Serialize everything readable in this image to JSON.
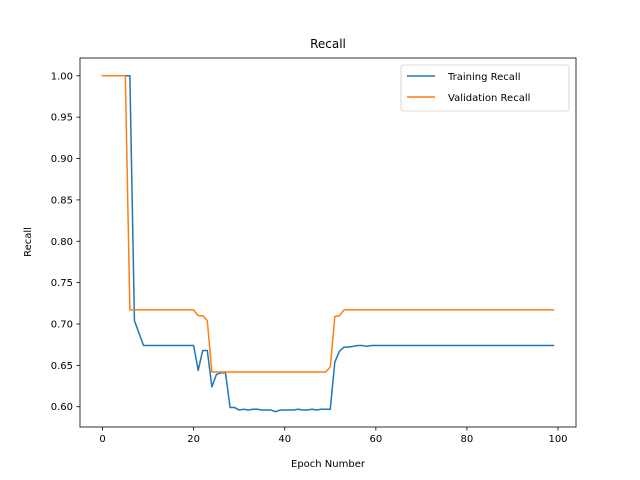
{
  "chart_data": {
    "type": "line",
    "title": "Recall",
    "xlabel": "Epoch Number",
    "ylabel": "Recall",
    "xlim": [
      -4.95,
      103.95
    ],
    "ylim": [
      0.5755,
      1.0215
    ],
    "xticks": [
      0,
      20,
      40,
      60,
      80,
      100
    ],
    "yticks": [
      0.6,
      0.65,
      0.7,
      0.75,
      0.8,
      0.85,
      0.9,
      0.95,
      1.0
    ],
    "grid": false,
    "legend_position": "top-right",
    "series": [
      {
        "name": "Training Recall",
        "color": "#1f77b4",
        "x": [
          0,
          1,
          2,
          3,
          4,
          5,
          6,
          7,
          8,
          9,
          10,
          11,
          12,
          13,
          14,
          15,
          16,
          17,
          18,
          19,
          20,
          21,
          22,
          23,
          24,
          25,
          26,
          27,
          28,
          29,
          30,
          31,
          32,
          33,
          34,
          35,
          36,
          37,
          38,
          39,
          40,
          41,
          42,
          43,
          44,
          45,
          46,
          47,
          48,
          49,
          50,
          51,
          52,
          53,
          54,
          55,
          56,
          57,
          58,
          59,
          60,
          61,
          62,
          63,
          64,
          65,
          66,
          67,
          68,
          69,
          70,
          71,
          72,
          73,
          74,
          75,
          76,
          77,
          78,
          79,
          80,
          81,
          82,
          83,
          84,
          85,
          86,
          87,
          88,
          89,
          90,
          91,
          92,
          93,
          94,
          95,
          96,
          97,
          98,
          99
        ],
        "y": [
          1.0,
          1.0,
          1.0,
          1.0,
          1.0,
          1.0,
          1.0,
          0.704,
          0.689,
          0.674,
          0.674,
          0.674,
          0.674,
          0.674,
          0.674,
          0.674,
          0.674,
          0.674,
          0.674,
          0.674,
          0.674,
          0.644,
          0.668,
          0.668,
          0.624,
          0.639,
          0.641,
          0.641,
          0.599,
          0.599,
          0.596,
          0.597,
          0.596,
          0.597,
          0.597,
          0.596,
          0.596,
          0.596,
          0.594,
          0.596,
          0.596,
          0.596,
          0.596,
          0.597,
          0.596,
          0.596,
          0.597,
          0.596,
          0.597,
          0.597,
          0.597,
          0.654,
          0.667,
          0.672,
          0.672,
          0.673,
          0.674,
          0.674,
          0.673,
          0.674,
          0.674,
          0.674,
          0.674,
          0.674,
          0.674,
          0.674,
          0.674,
          0.674,
          0.674,
          0.674,
          0.674,
          0.674,
          0.674,
          0.674,
          0.674,
          0.674,
          0.674,
          0.674,
          0.674,
          0.674,
          0.674,
          0.674,
          0.674,
          0.674,
          0.674,
          0.674,
          0.674,
          0.674,
          0.674,
          0.674,
          0.674,
          0.674,
          0.674,
          0.674,
          0.674,
          0.674,
          0.674,
          0.674,
          0.674,
          0.674
        ]
      },
      {
        "name": "Validation Recall",
        "color": "#ff7f0e",
        "x": [
          0,
          1,
          2,
          3,
          4,
          5,
          6,
          7,
          8,
          9,
          10,
          11,
          12,
          13,
          14,
          15,
          16,
          17,
          18,
          19,
          20,
          21,
          22,
          23,
          24,
          25,
          26,
          27,
          28,
          29,
          30,
          31,
          32,
          33,
          34,
          35,
          36,
          37,
          38,
          39,
          40,
          41,
          42,
          43,
          44,
          45,
          46,
          47,
          48,
          49,
          50,
          51,
          52,
          53,
          54,
          55,
          56,
          57,
          58,
          59,
          60,
          61,
          62,
          63,
          64,
          65,
          66,
          67,
          68,
          69,
          70,
          71,
          72,
          73,
          74,
          75,
          76,
          77,
          78,
          79,
          80,
          81,
          82,
          83,
          84,
          85,
          86,
          87,
          88,
          89,
          90,
          91,
          92,
          93,
          94,
          95,
          96,
          97,
          98,
          99
        ],
        "y": [
          1.0,
          1.0,
          1.0,
          1.0,
          1.0,
          1.0,
          0.717,
          0.717,
          0.717,
          0.717,
          0.717,
          0.717,
          0.717,
          0.717,
          0.717,
          0.717,
          0.717,
          0.717,
          0.717,
          0.717,
          0.717,
          0.71,
          0.71,
          0.704,
          0.642,
          0.642,
          0.642,
          0.642,
          0.642,
          0.642,
          0.642,
          0.642,
          0.642,
          0.642,
          0.642,
          0.642,
          0.642,
          0.642,
          0.642,
          0.642,
          0.642,
          0.642,
          0.642,
          0.642,
          0.642,
          0.642,
          0.642,
          0.642,
          0.642,
          0.642,
          0.648,
          0.709,
          0.71,
          0.717,
          0.717,
          0.717,
          0.717,
          0.717,
          0.717,
          0.717,
          0.717,
          0.717,
          0.717,
          0.717,
          0.717,
          0.717,
          0.717,
          0.717,
          0.717,
          0.717,
          0.717,
          0.717,
          0.717,
          0.717,
          0.717,
          0.717,
          0.717,
          0.717,
          0.717,
          0.717,
          0.717,
          0.717,
          0.717,
          0.717,
          0.717,
          0.717,
          0.717,
          0.717,
          0.717,
          0.717,
          0.717,
          0.717,
          0.717,
          0.717,
          0.717,
          0.717,
          0.717,
          0.717,
          0.717,
          0.717
        ]
      }
    ]
  }
}
